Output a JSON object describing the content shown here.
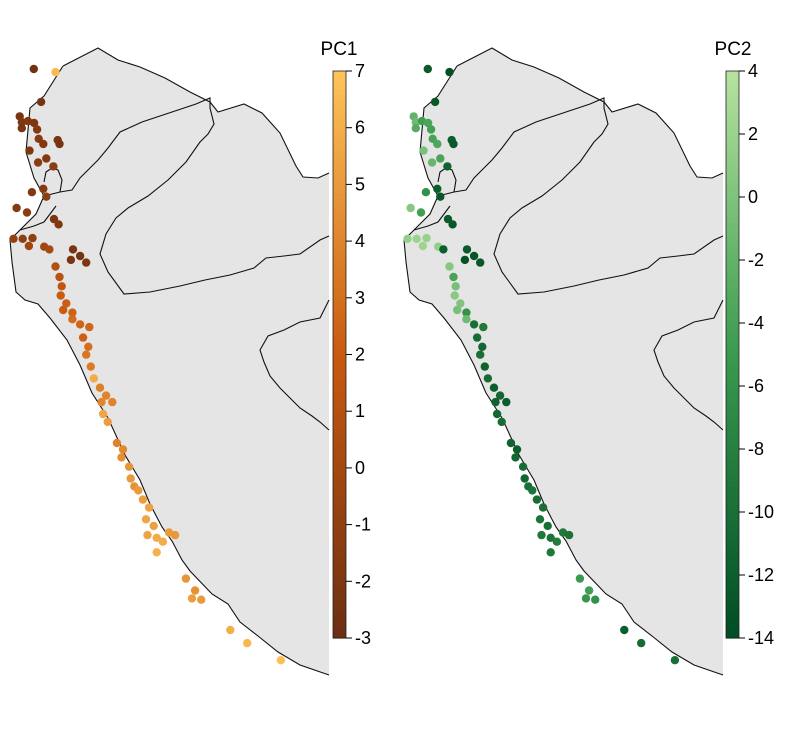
{
  "chart_data": [
    {
      "type": "scatter",
      "title": "",
      "legend_title": "PC1",
      "colorbar": {
        "min": -3,
        "max": 7,
        "ticks": [
          7,
          6,
          5,
          4,
          3,
          2,
          1,
          0,
          -1,
          -2,
          -3
        ],
        "tick_labels": [
          "7",
          "6",
          "5",
          "4",
          "3",
          "2",
          "1",
          "0",
          "-1",
          "-2",
          "-3"
        ],
        "colors": [
          "#6b2f12",
          "#c95a0f",
          "#ffc45a"
        ],
        "placement": "right"
      },
      "points": [
        {
          "x": -80.16,
          "y": -3.7,
          "v": -2.6
        },
        {
          "x": -79.45,
          "y": -3.82,
          "v": 6.5
        },
        {
          "x": -79.92,
          "y": -4.95,
          "v": -2.4
        },
        {
          "x": -80.62,
          "y": -5.5,
          "v": -2.3
        },
        {
          "x": -80.55,
          "y": -5.72,
          "v": -2.0
        },
        {
          "x": -80.55,
          "y": -5.95,
          "v": -2.2
        },
        {
          "x": -80.35,
          "y": -5.68,
          "v": -1.9
        },
        {
          "x": -80.15,
          "y": -5.75,
          "v": -2.1
        },
        {
          "x": -80.05,
          "y": -6.0,
          "v": -1.8
        },
        {
          "x": -80.0,
          "y": -6.35,
          "v": -1.6
        },
        {
          "x": -79.85,
          "y": -6.55,
          "v": -1.7
        },
        {
          "x": -80.3,
          "y": -6.8,
          "v": -2.0
        },
        {
          "x": -80.02,
          "y": -7.25,
          "v": -1.5
        },
        {
          "x": -79.75,
          "y": -7.1,
          "v": -1.7
        },
        {
          "x": -79.38,
          "y": -6.4,
          "v": -2.2
        },
        {
          "x": -79.32,
          "y": -6.55,
          "v": -2.4
        },
        {
          "x": -79.52,
          "y": -7.4,
          "v": -1.2
        },
        {
          "x": -80.22,
          "y": -8.38,
          "v": -1.8
        },
        {
          "x": -79.85,
          "y": -8.25,
          "v": -1.6
        },
        {
          "x": -79.75,
          "y": -8.55,
          "v": -1.3
        },
        {
          "x": -80.72,
          "y": -8.98,
          "v": -1.6
        },
        {
          "x": -80.38,
          "y": -9.15,
          "v": -1.4
        },
        {
          "x": -79.5,
          "y": -9.4,
          "v": -2.1
        },
        {
          "x": -79.35,
          "y": -9.6,
          "v": -1.9
        },
        {
          "x": -80.82,
          "y": -10.15,
          "v": -0.9
        },
        {
          "x": -80.52,
          "y": -10.15,
          "v": -1.1
        },
        {
          "x": -80.2,
          "y": -10.12,
          "v": -1.0
        },
        {
          "x": -80.32,
          "y": -10.42,
          "v": -0.3
        },
        {
          "x": -79.82,
          "y": -10.45,
          "v": -0.2
        },
        {
          "x": -79.65,
          "y": -10.55,
          "v": 0.1
        },
        {
          "x": -78.88,
          "y": -10.55,
          "v": -2.3
        },
        {
          "x": -78.65,
          "y": -10.8,
          "v": -2.5
        },
        {
          "x": -78.95,
          "y": -10.95,
          "v": -2.2
        },
        {
          "x": -78.45,
          "y": -11.05,
          "v": -2.0
        },
        {
          "x": -79.45,
          "y": -11.2,
          "v": 0.8
        },
        {
          "x": -79.32,
          "y": -11.6,
          "v": 1.2
        },
        {
          "x": -79.25,
          "y": -11.95,
          "v": 1.6
        },
        {
          "x": -79.28,
          "y": -12.3,
          "v": 2.0
        },
        {
          "x": -79.1,
          "y": -12.6,
          "v": 2.2
        },
        {
          "x": -79.2,
          "y": -12.85,
          "v": 2.1
        },
        {
          "x": -78.9,
          "y": -12.95,
          "v": 2.4
        },
        {
          "x": -78.65,
          "y": -13.4,
          "v": 2.5
        },
        {
          "x": -78.9,
          "y": -13.2,
          "v": 2.8
        },
        {
          "x": -78.35,
          "y": -13.5,
          "v": 2.6
        },
        {
          "x": -78.55,
          "y": -13.9,
          "v": 2.3
        },
        {
          "x": -78.38,
          "y": -14.25,
          "v": 3.0
        },
        {
          "x": -78.45,
          "y": -14.55,
          "v": 3.3
        },
        {
          "x": -78.3,
          "y": -15.0,
          "v": 3.6
        },
        {
          "x": -78.2,
          "y": -15.45,
          "v": 5.8
        },
        {
          "x": -78.0,
          "y": -15.8,
          "v": 3.8
        },
        {
          "x": -77.8,
          "y": -16.1,
          "v": 4.0
        },
        {
          "x": -77.95,
          "y": -16.35,
          "v": 4.1
        },
        {
          "x": -77.6,
          "y": -16.35,
          "v": 4.0
        },
        {
          "x": -77.9,
          "y": -16.8,
          "v": 5.6
        },
        {
          "x": -77.75,
          "y": -17.1,
          "v": 5.2
        },
        {
          "x": -77.45,
          "y": -17.9,
          "v": 3.9
        },
        {
          "x": -77.25,
          "y": -18.15,
          "v": 4.2
        },
        {
          "x": -77.3,
          "y": -18.45,
          "v": 4.5
        },
        {
          "x": -77.05,
          "y": -18.8,
          "v": 4.8
        },
        {
          "x": -77.0,
          "y": -19.25,
          "v": 5.0
        },
        {
          "x": -76.88,
          "y": -19.55,
          "v": 4.7
        },
        {
          "x": -76.75,
          "y": -19.7,
          "v": 5.0
        },
        {
          "x": -76.6,
          "y": -20.05,
          "v": 5.2
        },
        {
          "x": -76.4,
          "y": -20.35,
          "v": 5.4
        },
        {
          "x": -76.5,
          "y": -20.8,
          "v": 5.6
        },
        {
          "x": -76.25,
          "y": -21.05,
          "v": 5.3
        },
        {
          "x": -76.45,
          "y": -21.4,
          "v": 5.5
        },
        {
          "x": -76.15,
          "y": -21.5,
          "v": 5.8
        },
        {
          "x": -75.95,
          "y": -21.65,
          "v": 5.9
        },
        {
          "x": -75.75,
          "y": -21.3,
          "v": 5.1
        },
        {
          "x": -75.55,
          "y": -21.4,
          "v": 4.9
        },
        {
          "x": -76.15,
          "y": -22.05,
          "v": 6.1
        },
        {
          "x": -75.2,
          "y": -23.05,
          "v": 4.8
        },
        {
          "x": -74.9,
          "y": -23.5,
          "v": 4.6
        },
        {
          "x": -75.0,
          "y": -23.8,
          "v": 5.2
        },
        {
          "x": -74.7,
          "y": -23.85,
          "v": 5.0
        },
        {
          "x": -73.75,
          "y": -25.0,
          "v": 6.0
        },
        {
          "x": -73.2,
          "y": -25.5,
          "v": 6.4
        },
        {
          "x": -72.1,
          "y": -26.15,
          "v": 6.8
        }
      ]
    },
    {
      "type": "scatter",
      "title": "",
      "legend_title": "PC2",
      "colorbar": {
        "min": -14,
        "max": 4,
        "ticks": [
          4,
          2,
          0,
          -2,
          -4,
          -6,
          -8,
          -10,
          -12,
          -14
        ],
        "tick_labels": [
          "4",
          "2",
          "0",
          "-2",
          "-4",
          "-6",
          "-8",
          "-10",
          "-12",
          "-14"
        ],
        "colors": [
          "#004d23",
          "#3a9a4f",
          "#b6e3a0"
        ],
        "placement": "right"
      },
      "points": [
        {
          "x": -80.16,
          "y": -3.7,
          "v": -12.5
        },
        {
          "x": -79.45,
          "y": -3.82,
          "v": -13.5
        },
        {
          "x": -79.92,
          "y": -4.95,
          "v": -12.8
        },
        {
          "x": -80.62,
          "y": -5.5,
          "v": -2.0
        },
        {
          "x": -80.55,
          "y": -5.72,
          "v": -1.0
        },
        {
          "x": -80.55,
          "y": -5.95,
          "v": -3.0
        },
        {
          "x": -80.35,
          "y": -5.68,
          "v": -4.5
        },
        {
          "x": -80.15,
          "y": -5.75,
          "v": -3.8
        },
        {
          "x": -80.05,
          "y": -6.0,
          "v": -4.2
        },
        {
          "x": -80.0,
          "y": -6.35,
          "v": -4.0
        },
        {
          "x": -79.85,
          "y": -6.55,
          "v": -3.5
        },
        {
          "x": -80.3,
          "y": -6.8,
          "v": -0.5
        },
        {
          "x": -80.02,
          "y": -7.25,
          "v": -1.5
        },
        {
          "x": -79.75,
          "y": -7.1,
          "v": -3.8
        },
        {
          "x": -79.38,
          "y": -6.4,
          "v": -12.0
        },
        {
          "x": -79.32,
          "y": -6.55,
          "v": -12.5
        },
        {
          "x": -79.52,
          "y": -7.4,
          "v": -11.5
        },
        {
          "x": -80.22,
          "y": -8.38,
          "v": -6.0
        },
        {
          "x": -79.85,
          "y": -8.25,
          "v": -12.0
        },
        {
          "x": -79.75,
          "y": -8.55,
          "v": -13.0
        },
        {
          "x": -80.72,
          "y": -8.98,
          "v": 0.5
        },
        {
          "x": -80.38,
          "y": -9.15,
          "v": -4.5
        },
        {
          "x": -79.5,
          "y": -9.4,
          "v": -12.5
        },
        {
          "x": -79.35,
          "y": -9.6,
          "v": -13.0
        },
        {
          "x": -80.82,
          "y": -10.15,
          "v": 1.5
        },
        {
          "x": -80.52,
          "y": -10.15,
          "v": 2.0
        },
        {
          "x": -80.2,
          "y": -10.12,
          "v": 1.8
        },
        {
          "x": -80.32,
          "y": -10.42,
          "v": 2.2
        },
        {
          "x": -79.82,
          "y": -10.45,
          "v": 1.5
        },
        {
          "x": -79.65,
          "y": -10.55,
          "v": -12.0
        },
        {
          "x": -78.88,
          "y": -10.55,
          "v": -12.5
        },
        {
          "x": -78.65,
          "y": -10.8,
          "v": -13.0
        },
        {
          "x": -78.95,
          "y": -10.95,
          "v": -13.5
        },
        {
          "x": -78.45,
          "y": -11.05,
          "v": -12.8
        },
        {
          "x": -79.45,
          "y": -11.2,
          "v": 0.5
        },
        {
          "x": -79.32,
          "y": -11.6,
          "v": -4.0
        },
        {
          "x": -79.25,
          "y": -11.95,
          "v": -0.5
        },
        {
          "x": -79.28,
          "y": -12.3,
          "v": 0.8
        },
        {
          "x": -79.1,
          "y": -12.6,
          "v": 0.2
        },
        {
          "x": -79.2,
          "y": -12.85,
          "v": -0.5
        },
        {
          "x": -78.9,
          "y": -12.95,
          "v": -6.0
        },
        {
          "x": -78.65,
          "y": -13.4,
          "v": -10.0
        },
        {
          "x": -78.9,
          "y": -13.2,
          "v": -1.0
        },
        {
          "x": -78.35,
          "y": -13.5,
          "v": -9.0
        },
        {
          "x": -78.55,
          "y": -13.9,
          "v": -10.5
        },
        {
          "x": -78.38,
          "y": -14.25,
          "v": -11.0
        },
        {
          "x": -78.45,
          "y": -14.55,
          "v": -10.0
        },
        {
          "x": -78.3,
          "y": -15.0,
          "v": -11.5
        },
        {
          "x": -78.2,
          "y": -15.45,
          "v": -10.5
        },
        {
          "x": -78.0,
          "y": -15.8,
          "v": -12.0
        },
        {
          "x": -77.8,
          "y": -16.1,
          "v": -11.0
        },
        {
          "x": -77.95,
          "y": -16.35,
          "v": -11.5
        },
        {
          "x": -77.6,
          "y": -16.35,
          "v": -12.0
        },
        {
          "x": -77.9,
          "y": -16.8,
          "v": -11.0
        },
        {
          "x": -77.75,
          "y": -17.1,
          "v": -10.5
        },
        {
          "x": -77.45,
          "y": -17.9,
          "v": -11.5
        },
        {
          "x": -77.25,
          "y": -18.15,
          "v": -12.0
        },
        {
          "x": -77.3,
          "y": -18.45,
          "v": -11.0
        },
        {
          "x": -77.05,
          "y": -18.8,
          "v": -10.5
        },
        {
          "x": -77.0,
          "y": -19.25,
          "v": -11.0
        },
        {
          "x": -76.88,
          "y": -19.55,
          "v": -10.0
        },
        {
          "x": -76.75,
          "y": -19.7,
          "v": -9.5
        },
        {
          "x": -76.6,
          "y": -20.05,
          "v": -10.5
        },
        {
          "x": -76.4,
          "y": -20.35,
          "v": -10.0
        },
        {
          "x": -76.5,
          "y": -20.8,
          "v": -9.5
        },
        {
          "x": -76.25,
          "y": -21.05,
          "v": -10.0
        },
        {
          "x": -76.45,
          "y": -21.4,
          "v": -9.0
        },
        {
          "x": -76.15,
          "y": -21.5,
          "v": -9.5
        },
        {
          "x": -75.95,
          "y": -21.65,
          "v": -8.5
        },
        {
          "x": -75.75,
          "y": -21.3,
          "v": -9.0
        },
        {
          "x": -75.55,
          "y": -21.4,
          "v": -9.8
        },
        {
          "x": -76.15,
          "y": -22.05,
          "v": -9.0
        },
        {
          "x": -75.2,
          "y": -23.05,
          "v": -5.0
        },
        {
          "x": -74.9,
          "y": -23.5,
          "v": -4.5
        },
        {
          "x": -75.0,
          "y": -23.8,
          "v": -5.5
        },
        {
          "x": -74.7,
          "y": -23.85,
          "v": -6.0
        },
        {
          "x": -73.75,
          "y": -25.0,
          "v": -12.0
        },
        {
          "x": -73.2,
          "y": -25.5,
          "v": -10.5
        },
        {
          "x": -72.1,
          "y": -26.15,
          "v": -10.0
        }
      ]
    }
  ]
}
